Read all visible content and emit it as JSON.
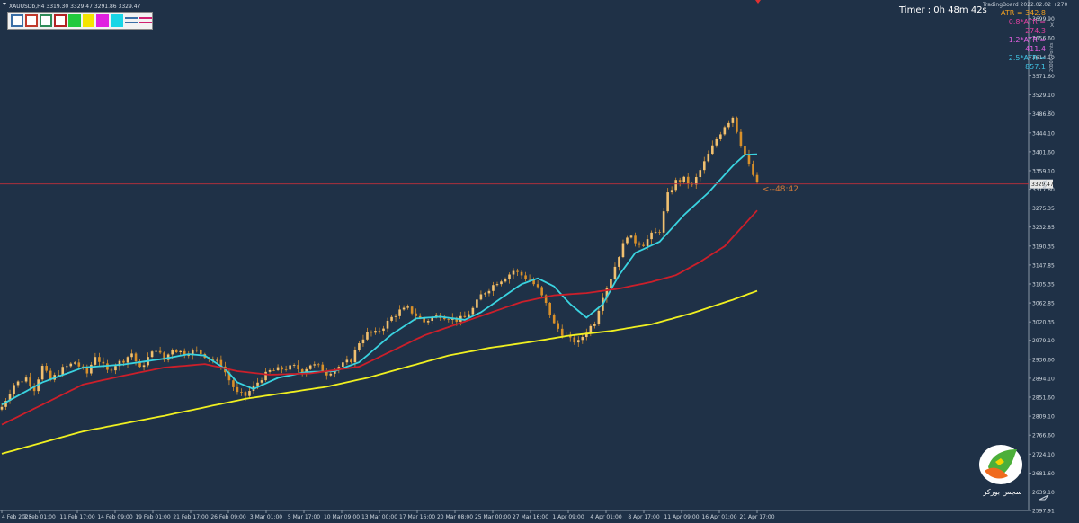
{
  "header": {
    "symbol_info": "XAUUSDb,H4  3319.30 3329.47 3291.86 3329.47"
  },
  "toolbar": {
    "swatches": [
      {
        "name": "rect-tool-blue",
        "color": "#3a6ea5",
        "style": "outline"
      },
      {
        "name": "rect-tool-red",
        "color": "#c0392b",
        "style": "outline"
      },
      {
        "name": "rect-tool-green",
        "color": "#2e8b57",
        "style": "outline"
      },
      {
        "name": "rect-tool-darkred",
        "color": "#b22222",
        "style": "outline"
      },
      {
        "name": "color-green",
        "color": "#22c93c",
        "style": "fill"
      },
      {
        "name": "color-yellow",
        "color": "#f5e400",
        "style": "fill"
      },
      {
        "name": "color-magenta",
        "color": "#e020e0",
        "style": "fill"
      },
      {
        "name": "color-cyan",
        "color": "#19d6e6",
        "style": "fill"
      },
      {
        "name": "line-style-tool",
        "color": "#3a6ea5",
        "style": "lines"
      },
      {
        "name": "line-color-tool",
        "color": "#d02070",
        "style": "lines"
      }
    ]
  },
  "timer": "Timer : 0h 48m 42s",
  "tradingboard_label": "TradingBoard 2022.02.02 +270",
  "atr": [
    {
      "text": "ATR = 342.8",
      "color": "#f0a020"
    },
    {
      "text": "0.8*ATR = 274.3",
      "color": "#e040a0"
    },
    {
      "text": "1.2*ATR = 411.4",
      "color": "#e060e0"
    },
    {
      "text": "2.5*ATR = 857.1",
      "color": "#40c0e0"
    }
  ],
  "countdown_label": "<--48:42",
  "logo_text": "سجس بورکر",
  "colors": {
    "background": "#1f3147",
    "ema_fast": "#3ad3e0",
    "ema_mid": "#cc1f2a",
    "ema_slow": "#f0f020",
    "candle": "#d8902a",
    "candle_up": "#f0c070",
    "price_line": "#c0303a",
    "axis_text": "#d0d8e0"
  },
  "chart_data": {
    "type": "candlestick",
    "ylim": [
      2597.91,
      3741.65
    ],
    "y_ticks": [
      3699.9,
      3656.6,
      3614.1,
      3571.6,
      3529.1,
      3486.6,
      3444.1,
      3401.6,
      3359.1,
      3317.6,
      3275.35,
      3232.85,
      3190.35,
      3147.85,
      3105.35,
      3062.85,
      3020.35,
      2979.1,
      2936.6,
      2894.1,
      2851.6,
      2809.1,
      2766.6,
      2724.1,
      2681.6,
      2639.1,
      2597.91
    ],
    "current_price": 3329.47,
    "current_price_label": "3329.47",
    "x_ticks": [
      "4 Feb 2025",
      "7 Feb 01:00",
      "11 Feb 17:00",
      "14 Feb 09:00",
      "19 Feb 01:00",
      "21 Feb 17:00",
      "26 Feb 09:00",
      "3 Mar 01:00",
      "5 Mar 17:00",
      "10 Mar 09:00",
      "13 Mar 00:00",
      "17 Mar 16:00",
      "20 Mar 08:00",
      "25 Mar 00:00",
      "27 Mar 16:00",
      "1 Apr 09:00",
      "4 Apr 01:00",
      "8 Apr 17:00",
      "11 Apr 09:00",
      "16 Apr 01:00",
      "21 Apr 17:00"
    ],
    "close_path": [
      [
        0,
        2830
      ],
      [
        3,
        2880
      ],
      [
        6,
        2895
      ],
      [
        8,
        2870
      ],
      [
        10,
        2920
      ],
      [
        12,
        2890
      ],
      [
        15,
        2915
      ],
      [
        18,
        2930
      ],
      [
        21,
        2905
      ],
      [
        23,
        2945
      ],
      [
        26,
        2910
      ],
      [
        28,
        2925
      ],
      [
        30,
        2935
      ],
      [
        32,
        2950
      ],
      [
        34,
        2915
      ],
      [
        36,
        2940
      ],
      [
        38,
        2960
      ],
      [
        40,
        2935
      ],
      [
        42,
        2960
      ],
      [
        45,
        2950
      ],
      [
        48,
        2955
      ],
      [
        50,
        2945
      ],
      [
        52,
        2935
      ],
      [
        54,
        2925
      ],
      [
        56,
        2890
      ],
      [
        58,
        2860
      ],
      [
        60,
        2855
      ],
      [
        62,
        2875
      ],
      [
        64,
        2895
      ],
      [
        66,
        2910
      ],
      [
        69,
        2915
      ],
      [
        72,
        2920
      ],
      [
        74,
        2910
      ],
      [
        76,
        2925
      ],
      [
        78,
        2920
      ],
      [
        80,
        2905
      ],
      [
        82,
        2915
      ],
      [
        84,
        2925
      ],
      [
        86,
        2935
      ],
      [
        88,
        2975
      ],
      [
        90,
        2995
      ],
      [
        92,
        2995
      ],
      [
        94,
        3010
      ],
      [
        96,
        3030
      ],
      [
        98,
        3045
      ],
      [
        100,
        3050
      ],
      [
        102,
        3035
      ],
      [
        104,
        3020
      ],
      [
        106,
        3030
      ],
      [
        108,
        3035
      ],
      [
        110,
        3030
      ],
      [
        112,
        3025
      ],
      [
        114,
        3030
      ],
      [
        116,
        3050
      ],
      [
        118,
        3080
      ],
      [
        120,
        3095
      ],
      [
        122,
        3110
      ],
      [
        124,
        3120
      ],
      [
        126,
        3135
      ],
      [
        128,
        3125
      ],
      [
        130,
        3115
      ],
      [
        132,
        3095
      ],
      [
        134,
        3060
      ],
      [
        136,
        3015
      ],
      [
        138,
        2995
      ],
      [
        140,
        2980
      ],
      [
        142,
        2975
      ],
      [
        144,
        3000
      ],
      [
        146,
        3020
      ],
      [
        148,
        3080
      ],
      [
        150,
        3120
      ],
      [
        152,
        3170
      ],
      [
        154,
        3215
      ],
      [
        156,
        3200
      ],
      [
        158,
        3195
      ],
      [
        160,
        3215
      ],
      [
        162,
        3225
      ],
      [
        164,
        3305
      ],
      [
        166,
        3335
      ],
      [
        168,
        3340
      ],
      [
        170,
        3325
      ],
      [
        172,
        3360
      ],
      [
        174,
        3395
      ],
      [
        176,
        3430
      ],
      [
        178,
        3460
      ],
      [
        180,
        3480
      ],
      [
        182,
        3420
      ],
      [
        184,
        3370
      ],
      [
        186,
        3329
      ]
    ],
    "series": [
      {
        "name": "",
        "type": "ema",
        "color": "#3ad3e0",
        "values": [
          [
            0,
            2835
          ],
          [
            10,
            2885
          ],
          [
            20,
            2918
          ],
          [
            30,
            2925
          ],
          [
            40,
            2938
          ],
          [
            46,
            2948
          ],
          [
            50,
            2945
          ],
          [
            55,
            2915
          ],
          [
            58,
            2885
          ],
          [
            62,
            2870
          ],
          [
            68,
            2895
          ],
          [
            75,
            2908
          ],
          [
            82,
            2910
          ],
          [
            88,
            2930
          ],
          [
            96,
            2992
          ],
          [
            102,
            3028
          ],
          [
            108,
            3032
          ],
          [
            114,
            3025
          ],
          [
            118,
            3042
          ],
          [
            124,
            3080
          ],
          [
            128,
            3105
          ],
          [
            132,
            3118
          ],
          [
            136,
            3100
          ],
          [
            140,
            3060
          ],
          [
            144,
            3030
          ],
          [
            148,
            3060
          ],
          [
            152,
            3125
          ],
          [
            156,
            3175
          ],
          [
            162,
            3200
          ],
          [
            168,
            3260
          ],
          [
            174,
            3310
          ],
          [
            180,
            3370
          ],
          [
            183,
            3395
          ],
          [
            186,
            3396
          ]
        ]
      },
      {
        "name": "",
        "type": "ema",
        "color": "#cc1f2a",
        "values": [
          [
            0,
            2790
          ],
          [
            10,
            2835
          ],
          [
            20,
            2880
          ],
          [
            30,
            2900
          ],
          [
            40,
            2918
          ],
          [
            50,
            2926
          ],
          [
            58,
            2910
          ],
          [
            66,
            2902
          ],
          [
            76,
            2905
          ],
          [
            88,
            2920
          ],
          [
            96,
            2955
          ],
          [
            104,
            2990
          ],
          [
            112,
            3015
          ],
          [
            120,
            3040
          ],
          [
            128,
            3065
          ],
          [
            136,
            3080
          ],
          [
            144,
            3085
          ],
          [
            152,
            3095
          ],
          [
            160,
            3110
          ],
          [
            166,
            3125
          ],
          [
            172,
            3155
          ],
          [
            178,
            3190
          ],
          [
            183,
            3240
          ],
          [
            186,
            3270
          ]
        ]
      },
      {
        "name": "",
        "type": "sma",
        "color": "#f0f020",
        "values": [
          [
            0,
            2725
          ],
          [
            20,
            2775
          ],
          [
            40,
            2810
          ],
          [
            60,
            2848
          ],
          [
            80,
            2875
          ],
          [
            90,
            2895
          ],
          [
            100,
            2920
          ],
          [
            110,
            2945
          ],
          [
            120,
            2962
          ],
          [
            130,
            2975
          ],
          [
            140,
            2990
          ],
          [
            150,
            3000
          ],
          [
            160,
            3015
          ],
          [
            170,
            3040
          ],
          [
            180,
            3070
          ],
          [
            186,
            3090
          ]
        ]
      }
    ]
  }
}
